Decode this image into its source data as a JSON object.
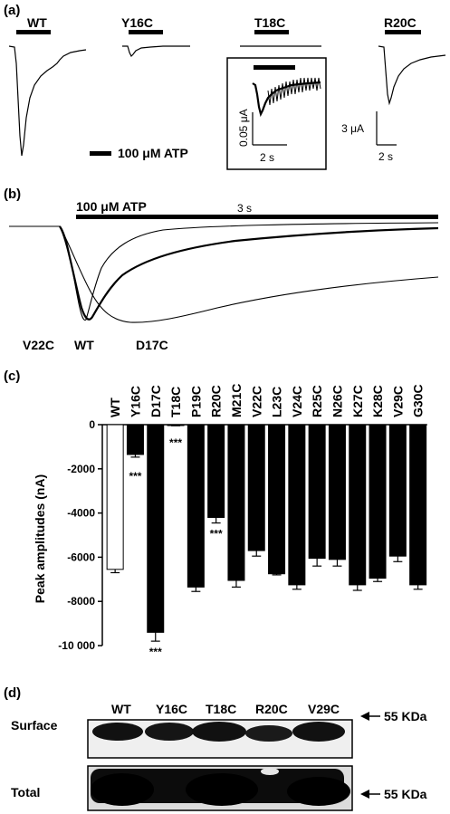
{
  "panel_a": {
    "label": "(a)",
    "traces": [
      "WT",
      "Y16C",
      "T18C",
      "R20C"
    ],
    "stimulus_legend": "100 μM ATP",
    "inset_y_scale": "0.05 μA",
    "inset_x_scale": "2 s",
    "y_scale": "3 μA",
    "x_scale": "2 s"
  },
  "panel_b": {
    "label": "(b)",
    "stimulus": "100 μM ATP",
    "duration": "3 s",
    "traces": [
      "V22C",
      "WT",
      "D17C"
    ]
  },
  "panel_c": {
    "label": "(c)",
    "significance": "***"
  },
  "chart_data": {
    "type": "bar",
    "ylabel": "Peak amplitudes (nA)",
    "ylim": [
      -10000,
      0
    ],
    "yticks": [
      "0",
      "-2000",
      "-4000",
      "-6000",
      "-8000",
      "-10 000"
    ],
    "categories": [
      "WT",
      "Y16C",
      "D17C",
      "T18C",
      "P19C",
      "R20C",
      "M21C",
      "V22C",
      "L23C",
      "V24C",
      "R25C",
      "N26C",
      "K27C",
      "K28C",
      "V29C",
      "G30C"
    ],
    "values": [
      -6550,
      -1350,
      -9400,
      -30,
      -7350,
      -4200,
      -7050,
      -5700,
      -6750,
      -7250,
      -6050,
      -6100,
      -7250,
      -6950,
      -5950,
      -7250
    ],
    "errors": [
      150,
      120,
      400,
      20,
      200,
      250,
      300,
      250,
      50,
      200,
      350,
      300,
      250,
      150,
      250,
      200
    ],
    "bar_colors": [
      "#ffffff",
      "#000000",
      "#000000",
      "#000000",
      "#000000",
      "#000000",
      "#000000",
      "#000000",
      "#000000",
      "#000000",
      "#000000",
      "#000000",
      "#000000",
      "#000000",
      "#000000",
      "#000000"
    ],
    "significant": [
      "Y16C",
      "D17C",
      "T18C",
      "R20C"
    ]
  },
  "panel_d": {
    "label": "(d)",
    "lanes": [
      "WT",
      "Y16C",
      "T18C",
      "R20C",
      "V29C"
    ],
    "rows": [
      "Surface",
      "Total"
    ],
    "marker": "55 KDa"
  }
}
